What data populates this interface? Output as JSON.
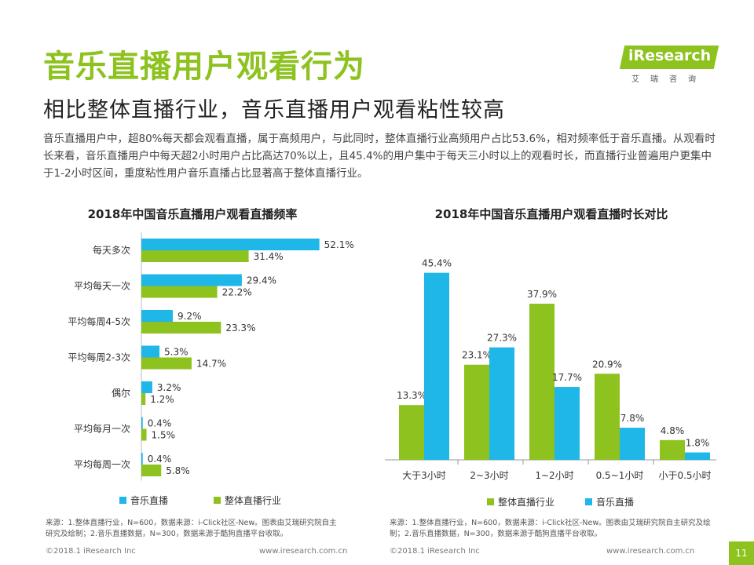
{
  "header": {
    "title": "音乐直播用户观看行为",
    "subtitle": "相比整体直播行业，音乐直播用户观看粘性较高",
    "intro": "音乐直播用户中，超80%每天都会观看直播，属于高频用户，与此同时，整体直播行业高频用户占比53.6%，相对频率低于音乐直播。从观看时长来看，音乐直播用户中每天超2小时用户占比高达70%以上，且45.4%的用户集中于每天三小时以上的观看时长，而直播行业普遍用户更集中于1-2小时区间，重度粘性用户音乐直播占比显著高于整体直播行业。"
  },
  "logo": {
    "wordmark": "iResearch",
    "tagline": "艾瑞咨询"
  },
  "colors": {
    "accent": "#8dc21f",
    "music": "#1fb6e8",
    "overall": "#8dc21f"
  },
  "chart_data": [
    {
      "type": "bar",
      "orientation": "horizontal",
      "title": "2018年中国音乐直播用户观看直播频率",
      "categories": [
        "每天多次",
        "平均每天一次",
        "平均每周4-5次",
        "平均每周2-3次",
        "偶尔",
        "平均每月一次",
        "平均每周一次"
      ],
      "series": [
        {
          "name": "音乐直播",
          "color": "#1fb6e8",
          "values": [
            52.1,
            29.4,
            9.2,
            5.3,
            3.2,
            0.4,
            0.4
          ],
          "labels": [
            "52.1%",
            "29.4%",
            "9.2%",
            "5.3%",
            "3.2%",
            "0.4%",
            "0.4%"
          ]
        },
        {
          "name": "整体直播行业",
          "color": "#8dc21f",
          "values": [
            31.4,
            22.2,
            23.3,
            14.7,
            1.2,
            1.5,
            5.8
          ],
          "labels": [
            "31.4%",
            "22.2%",
            "23.3%",
            "14.7%",
            "1.2%",
            "1.5%",
            "5.8%"
          ]
        }
      ],
      "legend": [
        "音乐直播",
        "整体直播行业"
      ],
      "legend_position": "bottom"
    },
    {
      "type": "bar",
      "orientation": "vertical",
      "title": "2018年中国音乐直播用户观看直播时长对比",
      "categories": [
        "大于3小时",
        "2~3小时",
        "1~2小时",
        "0.5~1小时",
        "小于0.5小时"
      ],
      "series": [
        {
          "name": "整体直播行业",
          "color": "#8dc21f",
          "values": [
            13.3,
            23.1,
            37.9,
            20.9,
            4.8
          ],
          "labels": [
            "13.3%",
            "23.1%",
            "37.9%",
            "20.9%",
            "4.8%"
          ]
        },
        {
          "name": "音乐直播",
          "color": "#1fb6e8",
          "values": [
            45.4,
            27.3,
            17.7,
            7.8,
            1.8
          ],
          "labels": [
            "45.4%",
            "27.3%",
            "17.7%",
            "7.8%",
            "1.8%"
          ]
        }
      ],
      "legend": [
        "整体直播行业",
        "音乐直播"
      ],
      "legend_position": "bottom"
    }
  ],
  "sources": {
    "left": "来源：1.整体直播行业，N=600，数据来源：i-Click社区-New。图表由艾瑞研究院自主研究及绘制；2.音乐直播数据，N=300，数据来源于酷狗直播平台收取。",
    "right": "来源：1.整体直播行业，N=600，数据来源：i-Click社区-New。图表由艾瑞研究院自主研究及绘制；2.音乐直播数据，N=300，数据来源于酷狗直播平台收取。"
  },
  "footer": {
    "copyright_left": "©2018.1 iResearch Inc",
    "url_left": "www.iresearch.com.cn",
    "copyright_right": "©2018.1 iResearch Inc",
    "url_right": "www.iresearch.com.cn",
    "page_number": "11"
  }
}
